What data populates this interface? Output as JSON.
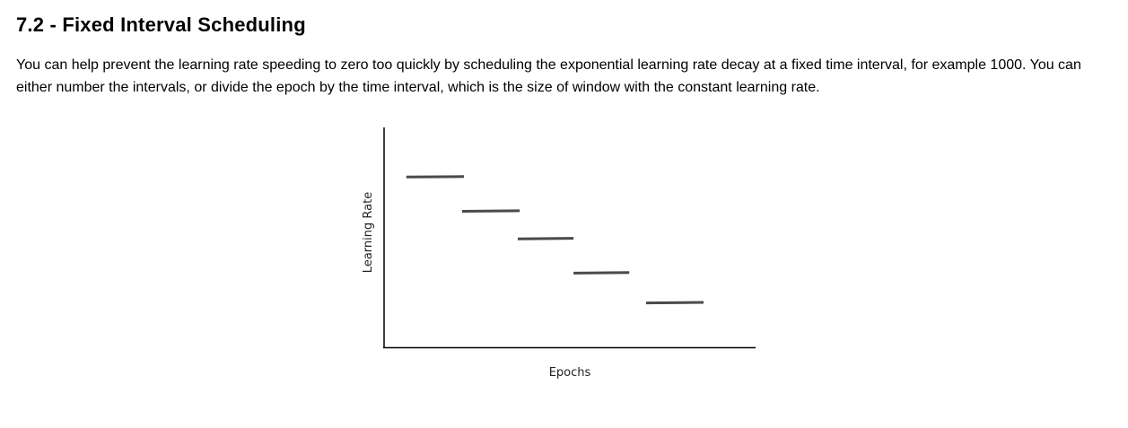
{
  "section": {
    "title": "7.2 - Fixed Interval Scheduling",
    "body": "You can help prevent the learning rate speeding to zero too quickly by scheduling the exponential learning rate decay at a fixed time interval, for example 1000. You can either number the intervals, or divide the epoch by the time interval, which is the size of window with the constant learning rate."
  },
  "chart_data": {
    "type": "line",
    "title": "",
    "xlabel": "Epochs",
    "ylabel": "Learning Rate",
    "grid": false,
    "legend": "none",
    "axis_ticks": false,
    "series": [
      {
        "style": "step-segments",
        "segments": [
          {
            "x": [
              0.06,
              0.215
            ],
            "y": 0.775
          },
          {
            "x": [
              0.21,
              0.365
            ],
            "y": 0.62
          },
          {
            "x": [
              0.36,
              0.51
            ],
            "y": 0.495
          },
          {
            "x": [
              0.51,
              0.66
            ],
            "y": 0.34
          },
          {
            "x": [
              0.705,
              0.86
            ],
            "y": 0.205
          }
        ]
      }
    ],
    "xlim": [
      0,
      1
    ],
    "ylim": [
      0,
      1
    ],
    "colors": {
      "axis": "#000000",
      "segments": "#4a4a4a"
    }
  }
}
